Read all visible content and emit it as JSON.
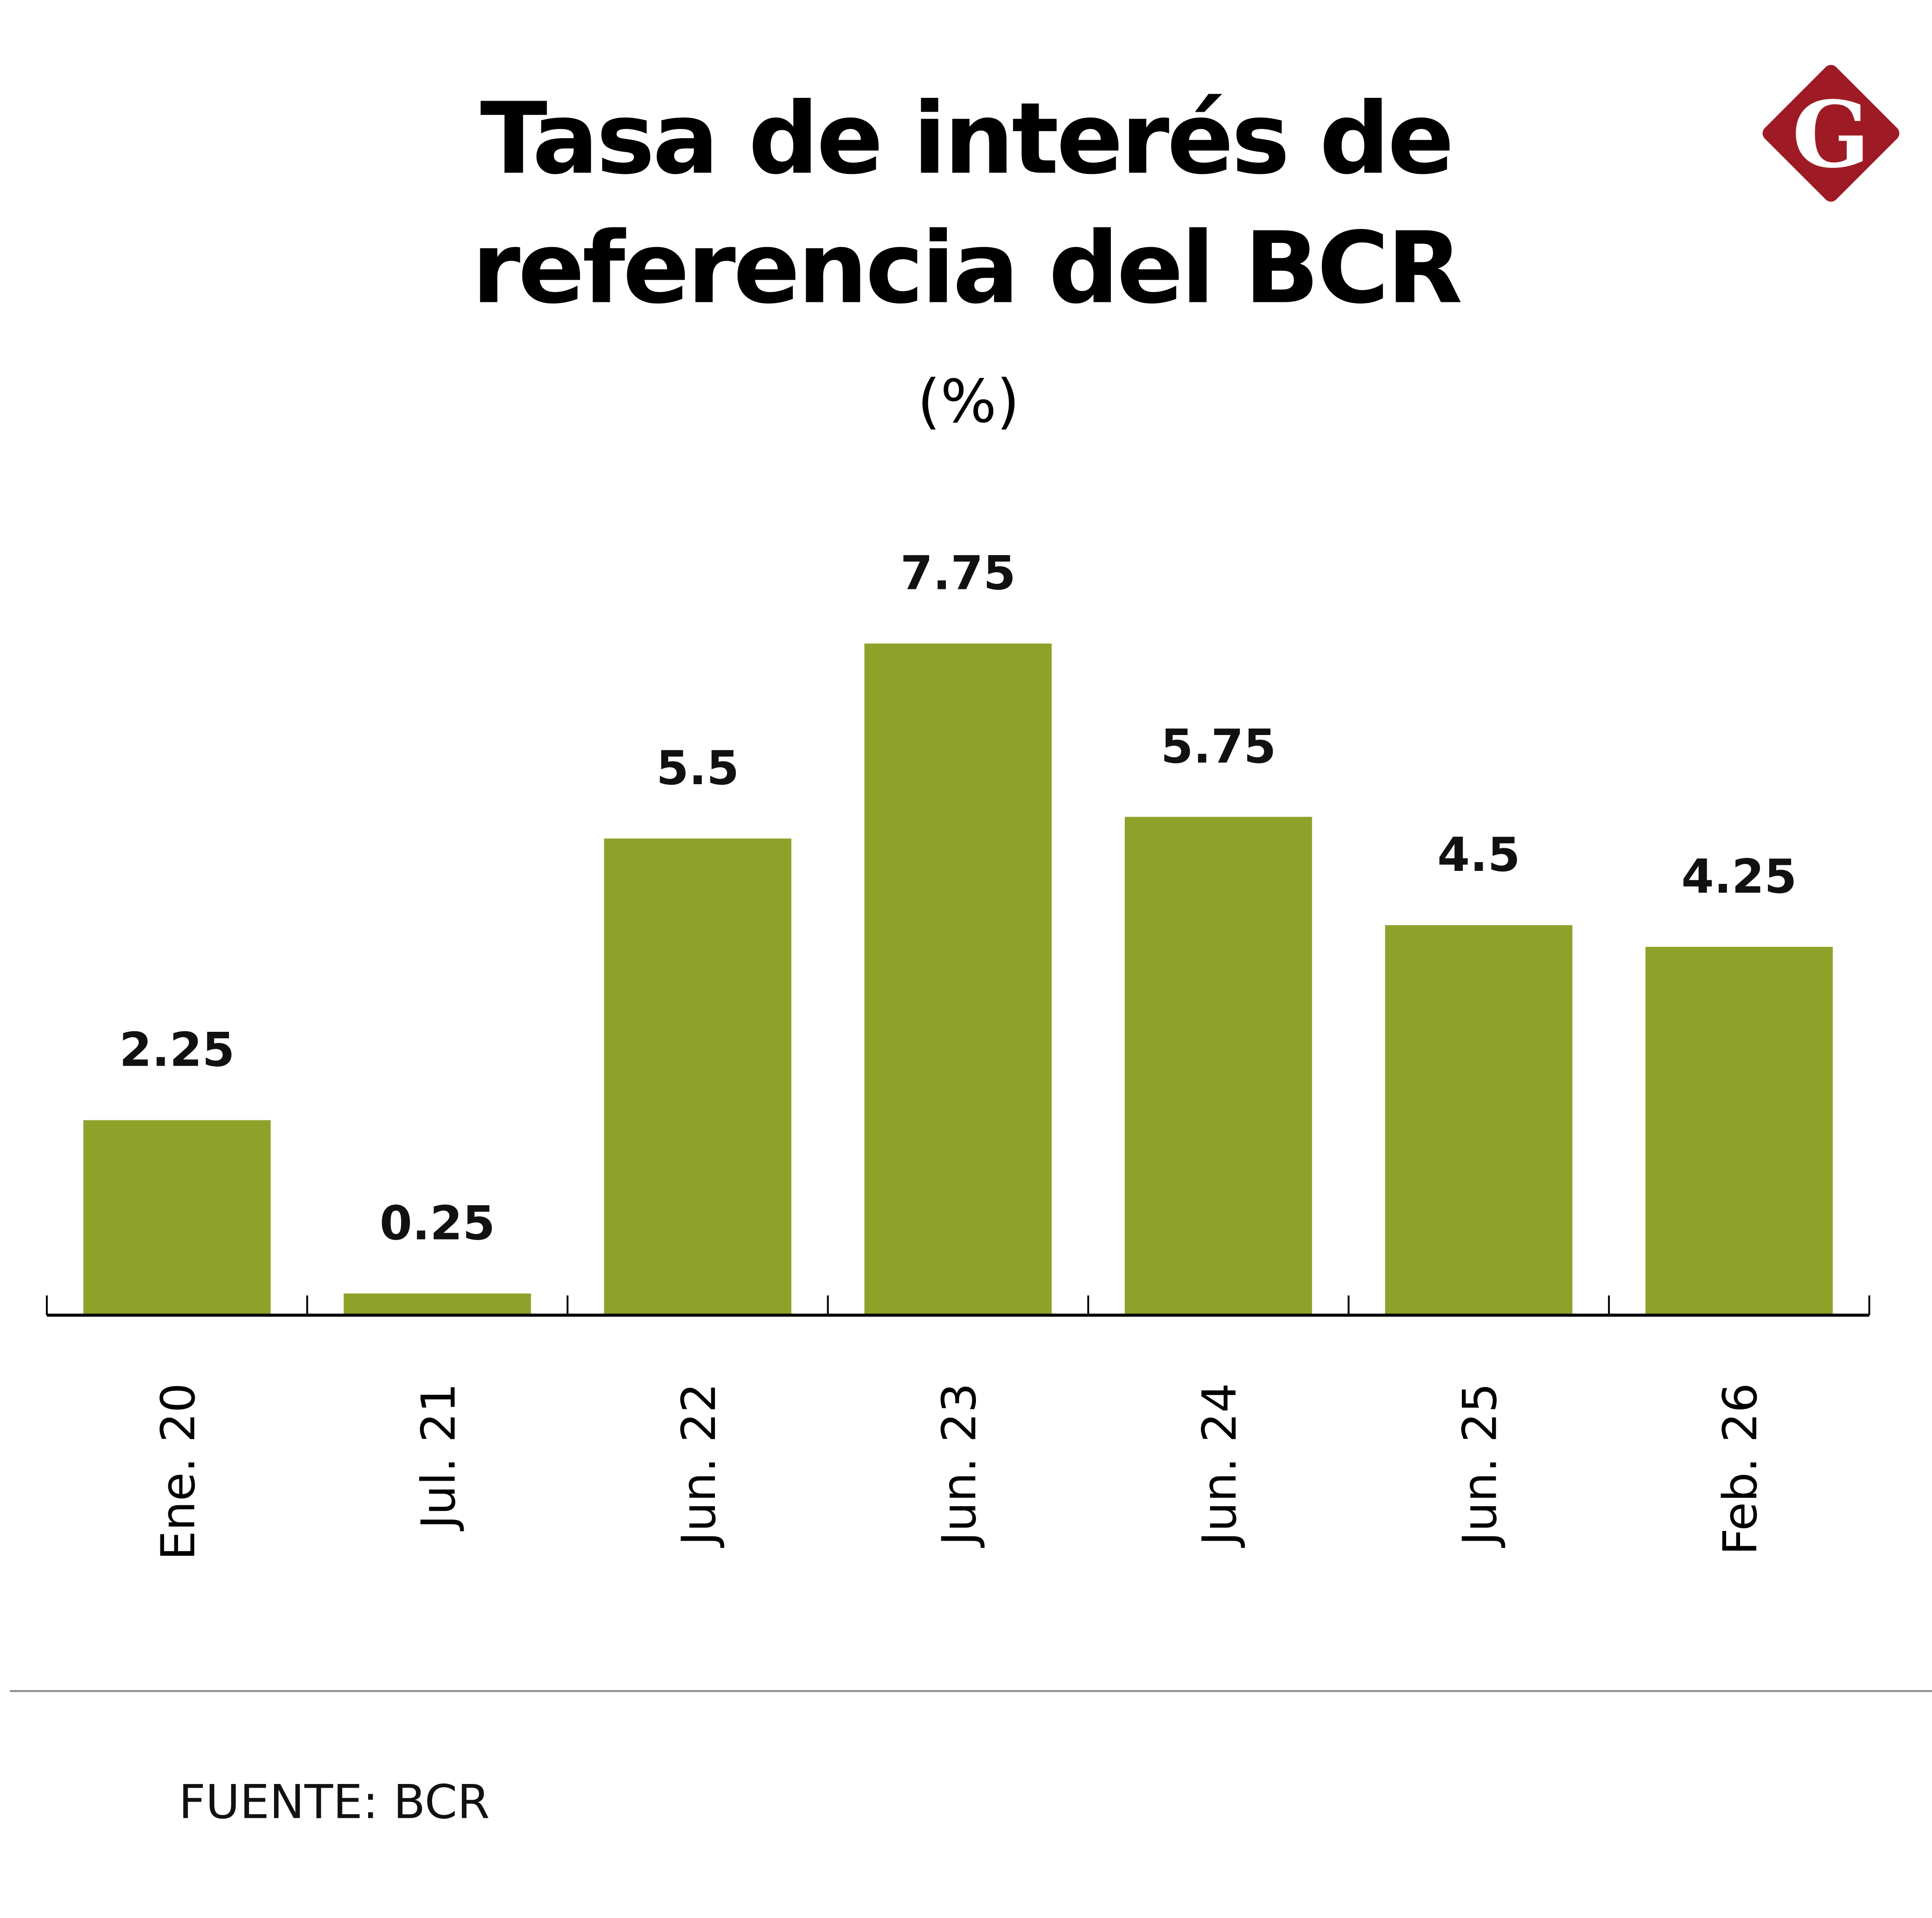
{
  "chart_data": {
    "type": "bar",
    "title": "Tasa de interés de referencia del BCR",
    "title_lines": [
      "Tasa de interés de",
      "referencia del BCR"
    ],
    "subtitle": "(%)",
    "categories": [
      "Ene. 20",
      "Jul. 21",
      "Jun. 22",
      "Jun. 23",
      "Jun. 24",
      "Jun. 25",
      "Feb. 26"
    ],
    "values": [
      2.25,
      0.25,
      5.5,
      7.75,
      5.75,
      4.5,
      4.25
    ],
    "data_labels": [
      "2.25",
      "0.25",
      "5.5",
      "7.75",
      "5.75",
      "4.5",
      "4.25"
    ],
    "xlabel": "",
    "ylabel": "",
    "ylim": [
      0,
      7.75
    ],
    "grid": false,
    "legend": "none",
    "bar_color": "#8ea229"
  },
  "source": "FUENTE: BCR",
  "logo": {
    "letter": "G",
    "color": "#9e1b25"
  }
}
